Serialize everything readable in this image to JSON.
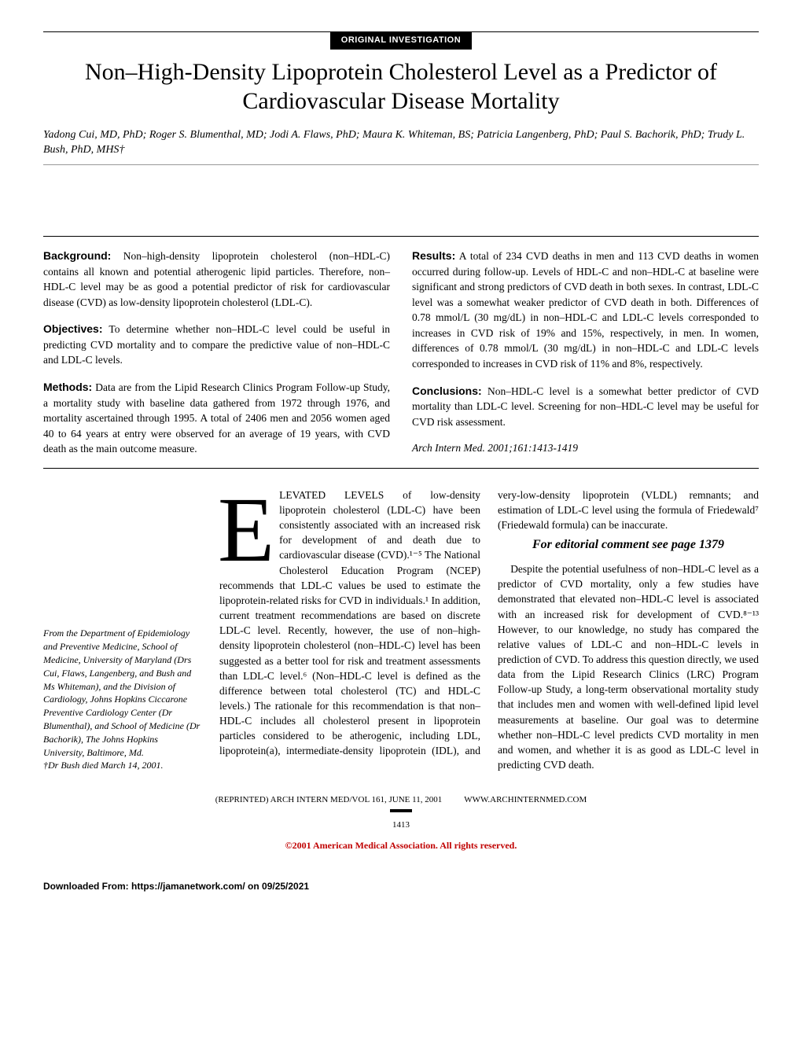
{
  "section_label": "ORIGINAL INVESTIGATION",
  "title": "Non–High-Density Lipoprotein Cholesterol Level as a Predictor of Cardiovascular Disease Mortality",
  "authors": "Yadong Cui, MD, PhD; Roger S. Blumenthal, MD; Jodi A. Flaws, PhD; Maura K. Whiteman, BS; Patricia Langenberg, PhD; Paul S. Bachorik, PhD; Trudy L. Bush, PhD, MHS†",
  "abstract": {
    "left": [
      {
        "label": "Background:",
        "text": " Non–high-density lipoprotein cholesterol (non–HDL-C) contains all known and potential atherogenic lipid particles. Therefore, non–HDL-C level may be as good a potential predictor of risk for cardiovascular disease (CVD) as low-density lipoprotein cholesterol (LDL-C)."
      },
      {
        "label": "Objectives:",
        "text": " To determine whether non–HDL-C level could be useful in predicting CVD mortality and to compare the predictive value of non–HDL-C and LDL-C levels."
      },
      {
        "label": "Methods:",
        "text": " Data are from the Lipid Research Clinics Program Follow-up Study, a mortality study with baseline data gathered from 1972 through 1976, and mortality ascertained through 1995. A total of 2406 men and 2056 women aged 40 to 64 years at entry were observed for an average of 19 years, with CVD death as the main outcome measure."
      }
    ],
    "right": [
      {
        "label": "Results:",
        "text": " A total of 234 CVD deaths in men and 113 CVD deaths in women occurred during follow-up. Levels of HDL-C and non–HDL-C at baseline were significant and strong predictors of CVD death in both sexes. In contrast, LDL-C level was a somewhat weaker predictor of CVD death in both. Differences of 0.78 mmol/L (30 mg/dL) in non–HDL-C and LDL-C levels corresponded to increases in CVD risk of 19% and 15%, respectively, in men. In women, differences of 0.78 mmol/L (30 mg/dL) in non–HDL-C and LDL-C levels corresponded to increases in CVD risk of 11% and 8%, respectively."
      },
      {
        "label": "Conclusions:",
        "text": " Non–HDL-C level is a somewhat better predictor of CVD mortality than LDL-C level. Screening for non–HDL-C level may be useful for CVD risk assessment."
      }
    ],
    "citation": "Arch Intern Med. 2001;161:1413-1419"
  },
  "body": {
    "dropcap": "E",
    "para1": "LEVATED LEVELS of low-density lipoprotein cholesterol (LDL-C) have been consistently associated with an increased risk for development of and death due to cardiovascular disease (CVD).¹⁻⁵ The National Cholesterol Education Program (NCEP) recommends that LDL-C values be used to estimate the lipoprotein-related risks for CVD in individuals.¹ In addition, current treatment recommendations are based on discrete LDL-C level. Recently, however, the use of non–high-density lipoprotein cholesterol (non–HDL-C) level has been suggested as a better tool for risk and treatment assessments than LDL-C level.⁶ (Non–HDL-C level is defined as the difference between total cholesterol (TC) and HDL-C levels.) The rationale for this recommendation is that non–HDL-C includes all cholesterol present in lipoprotein particles considered to be atherogenic, including LDL, lipoprotein(a), intermediate-density lipoprotein (IDL), and very-low-density lipoprotein (VLDL) rem",
    "para2a": "nants; and estimation of LDL-C level using the formula of Friedewald⁷ (Friedewald formula) can be inaccurate.",
    "callout": "For editorial comment see page 1379",
    "para2b": "Despite the potential usefulness of non–HDL-C level as a predictor of CVD mortality, only a few studies have demonstrated that elevated non–HDL-C level is associated with an increased risk for development of CVD.⁸⁻¹³ However, to our knowledge, no study has compared the relative values of LDL-C and non–HDL-C levels in prediction of CVD. To address this question directly, we used data from the Lipid Research Clinics (LRC) Program Follow-up Study, a long-term observational mortality study that includes men and women with well-defined lipid level measurements at baseline. Our goal was to determine whether non–HDL-C level predicts CVD mortality in men and women, and whether it is as good as LDL-C level in predicting CVD death."
  },
  "affiliation": "From the Department of Epidemiology and Preventive Medicine, School of Medicine, University of Maryland (Drs Cui, Flaws, Langenberg, and Bush and Ms Whiteman), and the Division of Cardiology, Johns Hopkins Ciccarone Preventive Cardiology Center (Dr Blumenthal), and School of Medicine (Dr Bachorik), The Johns Hopkins University, Baltimore, Md.",
  "affiliation_dagger": "†Dr Bush died March 14, 2001.",
  "footer": {
    "left": "(REPRINTED) ARCH INTERN MED/VOL 161, JUNE 11, 2001",
    "right": "WWW.ARCHINTERNMED.COM",
    "page": "1413",
    "copyright": "©2001 American Medical Association. All rights reserved."
  },
  "download": "Downloaded From: https://jamanetwork.com/ on 09/25/2021"
}
